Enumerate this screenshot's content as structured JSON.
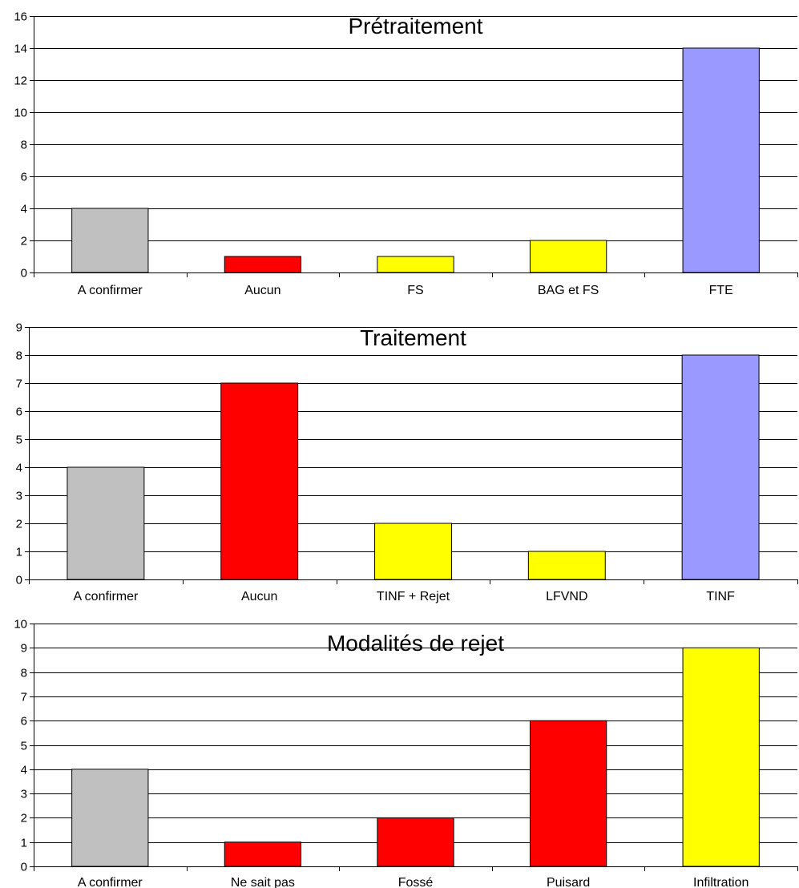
{
  "chart_data": [
    {
      "type": "bar",
      "title": "Prétraitement",
      "categories": [
        "A confirmer",
        "Aucun",
        "FS",
        "BAG et FS",
        "FTE"
      ],
      "values": [
        4,
        1,
        1,
        2,
        14
      ],
      "colors": [
        "#c0c0c0",
        "#ff0000",
        "#ffff00",
        "#ffff00",
        "#9999ff"
      ],
      "ylim": [
        0,
        16
      ],
      "ytick_step": 2,
      "xlabel": "",
      "ylabel": "",
      "grid": true,
      "legend": "none"
    },
    {
      "type": "bar",
      "title": "Traitement",
      "categories": [
        "A confirmer",
        "Aucun",
        "TINF + Rejet",
        "LFVND",
        "TINF"
      ],
      "values": [
        4,
        7,
        2,
        1,
        8
      ],
      "colors": [
        "#c0c0c0",
        "#ff0000",
        "#ffff00",
        "#ffff00",
        "#9999ff"
      ],
      "ylim": [
        0,
        9
      ],
      "ytick_step": 1,
      "xlabel": "",
      "ylabel": "",
      "grid": true,
      "legend": "none"
    },
    {
      "type": "bar",
      "title": "Modalités de rejet",
      "categories": [
        "A confirmer",
        "Ne sait pas",
        "Fossé",
        "Puisard",
        "Infiltration"
      ],
      "values": [
        4,
        1,
        2,
        6,
        9
      ],
      "colors": [
        "#c0c0c0",
        "#ff0000",
        "#ff0000",
        "#ff0000",
        "#ffff00"
      ],
      "ylim": [
        0,
        10
      ],
      "ytick_step": 1,
      "xlabel": "",
      "ylabel": "",
      "grid": true,
      "legend": "none"
    }
  ]
}
